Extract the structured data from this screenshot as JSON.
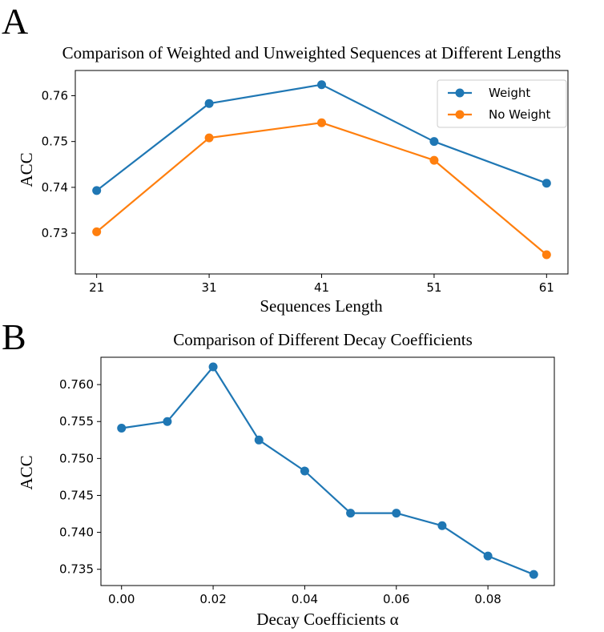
{
  "panels": {
    "a": {
      "letter": "A"
    },
    "b": {
      "letter": "B"
    }
  },
  "chart_data": [
    {
      "type": "line",
      "title": "Comparison of Weighted and Unweighted Sequences at Different Lengths",
      "xlabel": "Sequences Length",
      "ylabel": "ACC",
      "categories": [
        "21",
        "31",
        "41",
        "51",
        "61"
      ],
      "x": [
        21,
        31,
        41,
        51,
        61
      ],
      "xlim": [
        19.1,
        62.9
      ],
      "ylim": [
        0.7211,
        0.7655
      ],
      "yticks": [
        0.73,
        0.74,
        0.75,
        0.76
      ],
      "ytick_labels": [
        "0.73",
        "0.74",
        "0.75",
        "0.76"
      ],
      "grid": false,
      "legend_position": "top-right",
      "series": [
        {
          "name": "Weight",
          "color": "#1f77b4",
          "values": [
            0.7393,
            0.7583,
            0.7624,
            0.75,
            0.7409
          ]
        },
        {
          "name": "No Weight",
          "color": "#ff7f0e",
          "values": [
            0.7303,
            0.7508,
            0.7541,
            0.7459,
            0.7253
          ]
        }
      ]
    },
    {
      "type": "line",
      "title": "Comparison of Different Decay Coefficients",
      "xlabel": "Decay Coefficients α",
      "ylabel": "ACC",
      "x": [
        0.0,
        0.01,
        0.02,
        0.03,
        0.04,
        0.05,
        0.06,
        0.07,
        0.08,
        0.09
      ],
      "xticks": [
        0.0,
        0.02,
        0.04,
        0.06,
        0.08
      ],
      "xtick_labels": [
        "0.00",
        "0.02",
        "0.04",
        "0.06",
        "0.08"
      ],
      "xlim": [
        -0.0045,
        0.0945
      ],
      "ylim": [
        0.7328,
        0.7637
      ],
      "yticks": [
        0.735,
        0.74,
        0.745,
        0.75,
        0.755,
        0.76
      ],
      "ytick_labels": [
        "0.735",
        "0.740",
        "0.745",
        "0.750",
        "0.755",
        "0.760"
      ],
      "grid": false,
      "series": [
        {
          "name": "ACC",
          "color": "#1f77b4",
          "values": [
            0.7541,
            0.755,
            0.7624,
            0.7525,
            0.7483,
            0.7426,
            0.7426,
            0.7409,
            0.7368,
            0.7343
          ]
        }
      ]
    }
  ]
}
